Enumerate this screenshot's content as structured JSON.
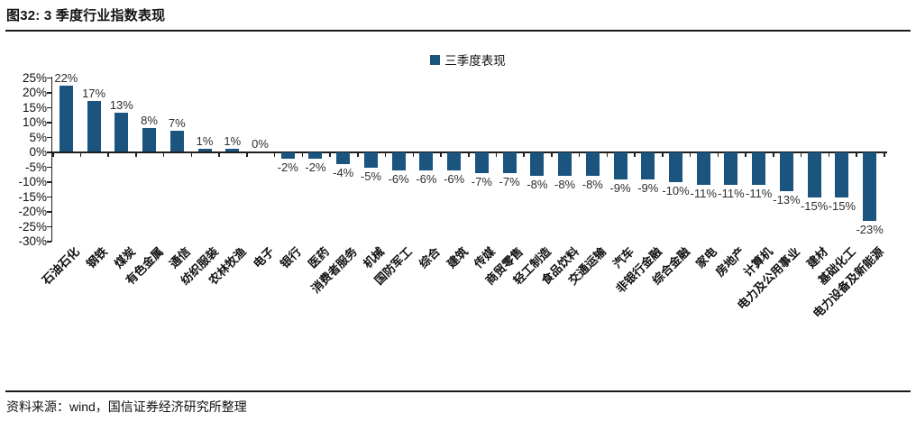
{
  "header": {
    "title": "图32: 3 季度行业指数表现"
  },
  "legend": {
    "label": "三季度表现"
  },
  "footer": {
    "source": "资料来源：wind，国信证券经济研究所整理"
  },
  "chart_data": {
    "type": "bar",
    "title": "三季度表现",
    "legend": [
      "三季度表现"
    ],
    "legend_position": "top-center",
    "categories": [
      "石油石化",
      "钢铁",
      "煤炭",
      "有色金属",
      "通信",
      "纺织服装",
      "农林牧渔",
      "电子",
      "银行",
      "医药",
      "消费者服务",
      "机械",
      "国防军工",
      "综合",
      "建筑",
      "传媒",
      "商贸零售",
      "轻工制造",
      "食品饮料",
      "交通运输",
      "汽车",
      "非银行金融",
      "综合金融",
      "家电",
      "房地产",
      "计算机",
      "电力及公用事业",
      "建材",
      "基础化工",
      "电力设备及新能源"
    ],
    "values": [
      22,
      17,
      13,
      8,
      7,
      1,
      1,
      0,
      -2,
      -2,
      -4,
      -5,
      -6,
      -6,
      -6,
      -7,
      -7,
      -8,
      -8,
      -8,
      -9,
      -9,
      -10,
      -11,
      -11,
      -11,
      -13,
      -15,
      -15,
      -23
    ],
    "unit": "%",
    "xlabel": "",
    "ylabel": "",
    "ylim": [
      -30,
      25
    ],
    "ytick_step": 5,
    "yticks": [
      "25%",
      "20%",
      "15%",
      "10%",
      "5%",
      "0%",
      "-5%",
      "-10%",
      "-15%",
      "-20%",
      "-25%",
      "-30%"
    ],
    "grid": false,
    "data_labels": true,
    "bar_color": "#1B547E",
    "axis_color": "#1f1f1f"
  }
}
